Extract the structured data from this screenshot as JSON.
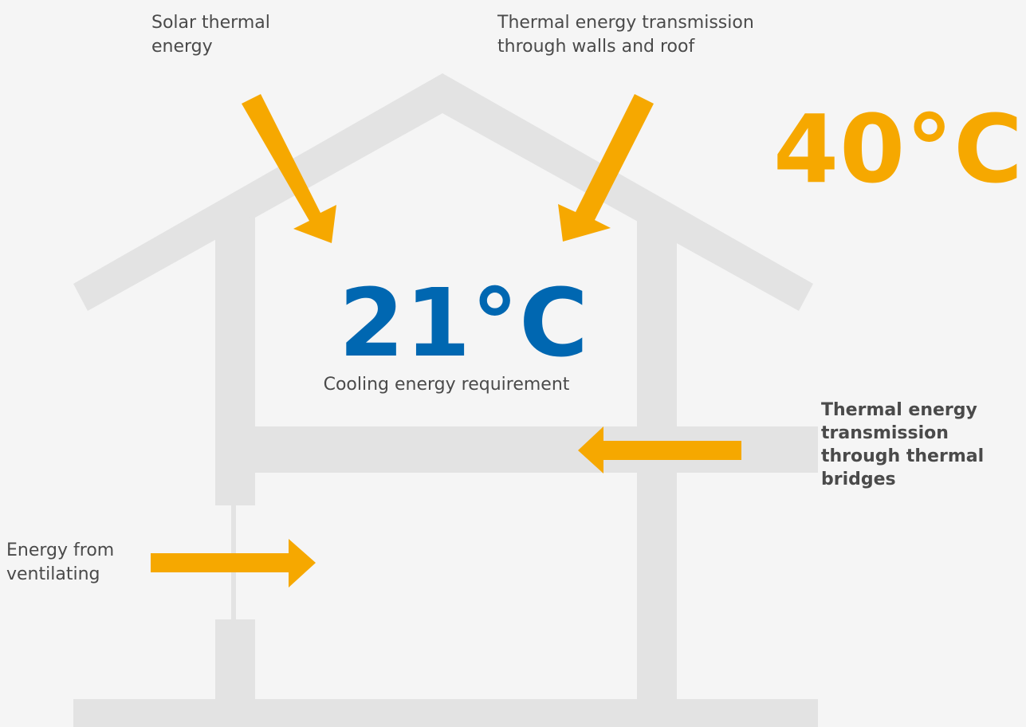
{
  "labels": {
    "solar_thermal": [
      "Solar thermal",
      "energy"
    ],
    "walls_roof": [
      "Thermal energy transmission",
      "through walls and roof"
    ],
    "ventilating": [
      "Energy from",
      "ventilating"
    ],
    "thermal_bridges": [
      "Thermal energy",
      "transmission",
      "through thermal",
      "bridges"
    ]
  },
  "outdoor": {
    "temperature": "40°C"
  },
  "indoor": {
    "temperature": "21°C",
    "caption": "Cooling energy requirement"
  },
  "colors": {
    "background": "#f5f5f5",
    "structure": "#e3e3e3",
    "arrow": "#f6a800",
    "indoor_temp": "#0067b1",
    "outdoor_temp": "#f6a800",
    "text": "#4a4a4a"
  }
}
